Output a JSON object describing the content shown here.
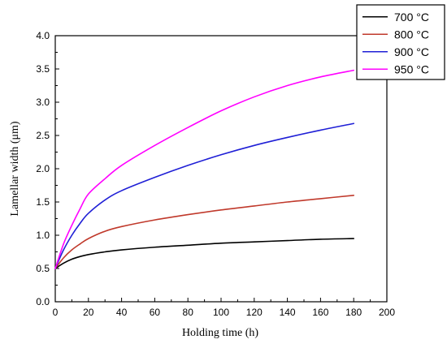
{
  "chart_data": {
    "type": "line",
    "xlabel": "Holding time (h)",
    "ylabel": "Lamellar width (μm)",
    "xlim": [
      0,
      200
    ],
    "ylim": [
      0.0,
      4.0
    ],
    "x_ticks": [
      0,
      20,
      40,
      60,
      80,
      100,
      120,
      140,
      160,
      180,
      200
    ],
    "y_ticks": [
      0.0,
      0.5,
      1.0,
      1.5,
      2.0,
      2.5,
      3.0,
      3.5,
      4.0
    ],
    "grid": false,
    "legend_position": "top-right",
    "series": [
      {
        "name": "700 °C",
        "color": "#000000",
        "x": [
          0,
          5,
          10,
          15,
          20,
          30,
          40,
          60,
          80,
          100,
          120,
          140,
          160,
          180
        ],
        "y": [
          0.5,
          0.58,
          0.64,
          0.68,
          0.71,
          0.75,
          0.78,
          0.82,
          0.85,
          0.88,
          0.9,
          0.92,
          0.94,
          0.95
        ]
      },
      {
        "name": "800 °C",
        "color": "#c0392b",
        "x": [
          0,
          5,
          10,
          15,
          20,
          30,
          40,
          60,
          80,
          100,
          120,
          140,
          160,
          180
        ],
        "y": [
          0.5,
          0.66,
          0.78,
          0.87,
          0.95,
          1.06,
          1.13,
          1.23,
          1.31,
          1.38,
          1.44,
          1.5,
          1.55,
          1.6
        ]
      },
      {
        "name": "900 °C",
        "color": "#1f1fd6",
        "x": [
          0,
          5,
          10,
          15,
          20,
          30,
          40,
          60,
          80,
          100,
          120,
          140,
          160,
          180
        ],
        "y": [
          0.5,
          0.78,
          1.0,
          1.18,
          1.33,
          1.53,
          1.67,
          1.87,
          2.05,
          2.21,
          2.35,
          2.47,
          2.58,
          2.68
        ]
      },
      {
        "name": "950 °C",
        "color": "#ff00ff",
        "x": [
          0,
          5,
          10,
          15,
          20,
          30,
          40,
          60,
          80,
          100,
          120,
          140,
          160,
          180
        ],
        "y": [
          0.5,
          0.87,
          1.15,
          1.4,
          1.62,
          1.85,
          2.05,
          2.35,
          2.62,
          2.87,
          3.08,
          3.25,
          3.38,
          3.48
        ]
      }
    ]
  }
}
